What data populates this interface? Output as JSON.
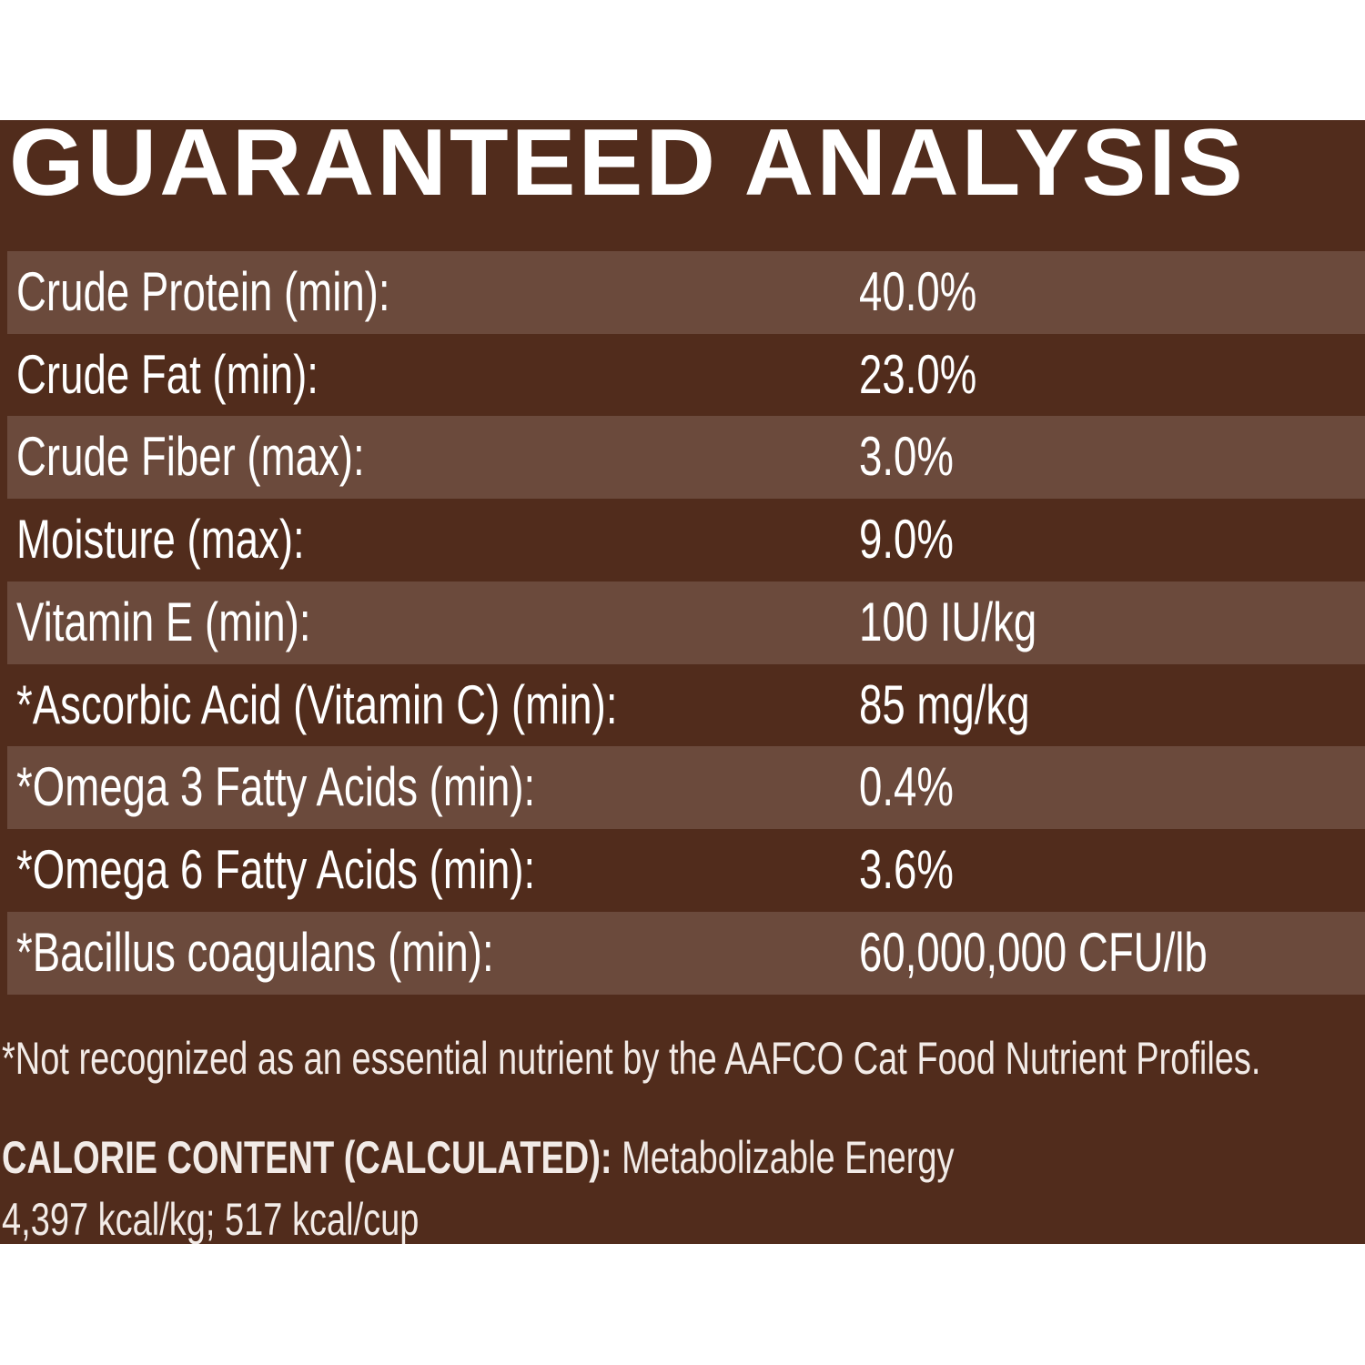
{
  "header": {
    "title": "GUARANTEED ANALYSIS"
  },
  "table": {
    "rows": [
      [
        "Crude Protein (min):",
        "40.0%"
      ],
      [
        "Crude Fat (min):",
        "23.0%"
      ],
      [
        "Crude Fiber (max):",
        "3.0%"
      ],
      [
        "Moisture (max):",
        "9.0%"
      ],
      [
        "Vitamin E (min):",
        "100 IU/kg"
      ],
      [
        "*Ascorbic Acid (Vitamin C) (min):",
        "85 mg/kg"
      ],
      [
        "*Omega 3 Fatty Acids (min):",
        "0.4%"
      ],
      [
        "*Omega 6 Fatty Acids (min):",
        "3.6%"
      ],
      [
        "*Bacillus coagulans (min):",
        "60,000,000 CFU/lb"
      ]
    ]
  },
  "footnote": "*Not recognized as an essential nutrient by the AAFCO Cat Food Nutrient Profiles.",
  "calorie": {
    "label": "CALORIE CONTENT (CALCULATED):",
    "line1": "Metabolizable Energy",
    "line2": "4,397 kcal/kg; 517 kcal/cup"
  }
}
